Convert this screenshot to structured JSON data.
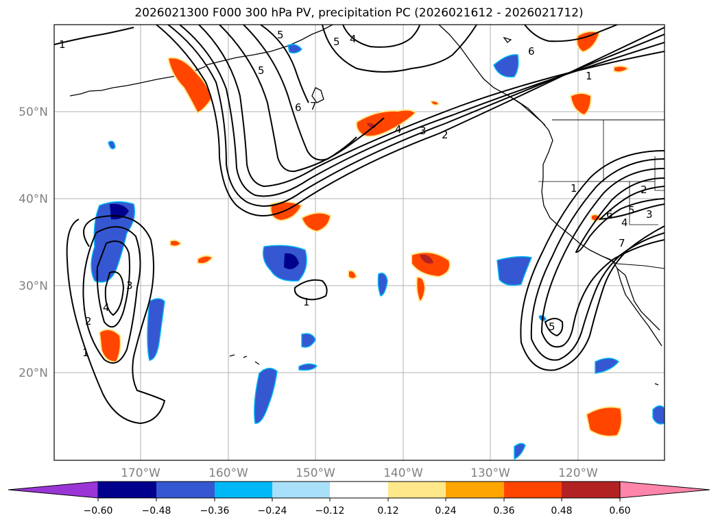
{
  "title": "2026021300 F000 300 hPa PV, precipitation PC (2026021612 - 2026021712)",
  "lat_labels": [
    "50°N",
    "40°N",
    "30°N",
    "20°N"
  ],
  "lon_labels": [
    "170°W",
    "160°W",
    "150°W",
    "140°W",
    "130°W",
    "120°W"
  ],
  "colorbar": {
    "tick_labels": [
      "−0.60",
      "−0.48",
      "−0.36",
      "−0.24",
      "−0.12",
      "0.12",
      "0.24",
      "0.36",
      "0.48",
      "0.60"
    ],
    "colors": [
      "#9b36d6",
      "#00008c",
      "#3557d1",
      "#00b8f5",
      "#a9e0f9",
      "#ffffff",
      "#ffe88a",
      "#ffa500",
      "#ff4500",
      "#b22222",
      "#ff85aa"
    ]
  },
  "contour_labels": {
    "pv_1_west": "1",
    "pv_5_north": "5",
    "pv_5_north_b": "5",
    "pv_4_north": "4",
    "pv_5_mid": "5",
    "pv_6_mid": "6",
    "pv_7_mid": "7",
    "pv_6_ne": "6",
    "pv_1_ne": "1",
    "pv_4_jet": "4",
    "pv_3_jet": "3",
    "pv_2_jet": "2",
    "pv_3_cutoff": "3",
    "pv_4_cutoff": "4",
    "pv_2_cutoff": "2",
    "pv_1_cutoff": "1",
    "pv_1_central": "1",
    "pv_5_trough": "5",
    "pv_1_trough": "1",
    "pv_6_trough": "6",
    "pv_5_trough_b": "5",
    "pv_4_trough": "4",
    "pv_3_trough": "3",
    "pv_7_trough": "7",
    "pv_2_trough": "2"
  }
}
